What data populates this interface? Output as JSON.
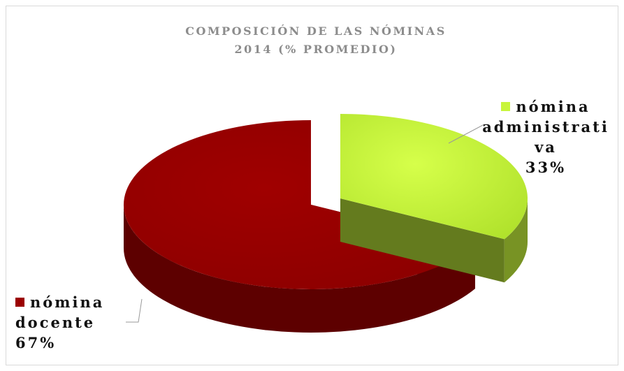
{
  "chart_data": {
    "type": "pie3d",
    "title": [
      "COMPOSICIÓN DE LAS NÓMINAS",
      "2014 (% PROMEDIO)"
    ],
    "categories": [
      "nómina administrativa",
      "nómina docente"
    ],
    "values": [
      33,
      67
    ],
    "value_labels": [
      "33%",
      "67%"
    ],
    "colors": [
      "#c8f53c",
      "#9b0000"
    ]
  }
}
